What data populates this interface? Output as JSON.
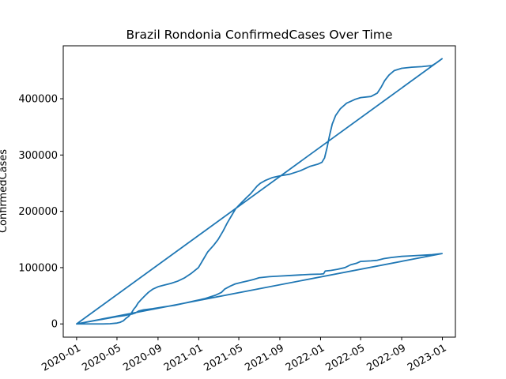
{
  "chart_data": {
    "type": "line",
    "title": "Brazil Rondonia ConfirmedCases Over Time",
    "xlabel": "",
    "ylabel": "ConfirmedCases",
    "grid": false,
    "legend": "none",
    "x_ticks": [
      {
        "date": "2020-01-01",
        "label": "2020-01"
      },
      {
        "date": "2020-05-01",
        "label": "2020-05"
      },
      {
        "date": "2020-09-01",
        "label": "2020-09"
      },
      {
        "date": "2021-01-01",
        "label": "2021-01"
      },
      {
        "date": "2021-05-01",
        "label": "2021-05"
      },
      {
        "date": "2021-09-01",
        "label": "2021-09"
      },
      {
        "date": "2022-01-01",
        "label": "2022-01"
      },
      {
        "date": "2022-05-01",
        "label": "2022-05"
      },
      {
        "date": "2022-09-01",
        "label": "2022-09"
      },
      {
        "date": "2023-01-01",
        "label": "2023-01"
      }
    ],
    "y_ticks": [
      {
        "value": 0,
        "label": "0"
      },
      {
        "value": 100000,
        "label": "100000"
      },
      {
        "value": 200000,
        "label": "200000"
      },
      {
        "value": 300000,
        "label": "300000"
      },
      {
        "value": 400000,
        "label": "400000"
      }
    ],
    "xlim": [
      "2019-11-22",
      "2023-02-09"
    ],
    "ylim": [
      -23500,
      494000
    ],
    "series": [
      {
        "name": "ConfirmedCases",
        "color": "#1f77b4",
        "points": [
          [
            "2020-01-01",
            0
          ],
          [
            "2020-03-20",
            0
          ],
          [
            "2020-04-10",
            300
          ],
          [
            "2020-05-01",
            1500
          ],
          [
            "2020-05-10",
            2800
          ],
          [
            "2020-05-20",
            5500
          ],
          [
            "2020-05-28",
            10000
          ],
          [
            "2020-06-05",
            13500
          ],
          [
            "2020-06-10",
            17000
          ],
          [
            "2020-06-15",
            21000
          ],
          [
            "2020-06-20",
            26000
          ],
          [
            "2020-06-27",
            31000
          ],
          [
            "2020-07-03",
            37000
          ],
          [
            "2020-07-12",
            43000
          ],
          [
            "2020-07-22",
            49000
          ],
          [
            "2020-08-03",
            56000
          ],
          [
            "2020-08-17",
            62000
          ],
          [
            "2020-09-01",
            66000
          ],
          [
            "2020-09-20",
            69000
          ],
          [
            "2020-10-10",
            72000
          ],
          [
            "2020-10-30",
            76000
          ],
          [
            "2020-11-20",
            82000
          ],
          [
            "2020-12-10",
            90000
          ],
          [
            "2020-12-31",
            100000
          ],
          [
            "2021-01-15",
            115000
          ],
          [
            "2021-01-28",
            128000
          ],
          [
            "2021-02-15",
            140000
          ],
          [
            "2021-02-28",
            150000
          ],
          [
            "2021-03-15",
            165000
          ],
          [
            "2021-03-28",
            180000
          ],
          [
            "2021-04-10",
            193000
          ],
          [
            "2021-04-22",
            205000
          ],
          [
            "2021-05-05",
            213000
          ],
          [
            "2021-05-20",
            222000
          ],
          [
            "2021-06-05",
            231000
          ],
          [
            "2021-06-15",
            238000
          ],
          [
            "2021-06-25",
            245000
          ],
          [
            "2021-07-05",
            250000
          ],
          [
            "2021-07-20",
            255000
          ],
          [
            "2021-08-10",
            260000
          ],
          [
            "2021-09-01",
            263000
          ],
          [
            "2021-10-01",
            266000
          ],
          [
            "2021-11-01",
            272000
          ],
          [
            "2021-12-01",
            280000
          ],
          [
            "2021-12-25",
            284000
          ],
          [
            "2022-01-05",
            287000
          ],
          [
            "2022-01-13",
            295000
          ],
          [
            "2022-01-20",
            312000
          ],
          [
            "2022-01-28",
            335000
          ],
          [
            "2022-02-05",
            355000
          ],
          [
            "2022-02-15",
            370000
          ],
          [
            "2022-03-01",
            382000
          ],
          [
            "2022-03-20",
            392000
          ],
          [
            "2022-04-15",
            399000
          ],
          [
            "2022-05-01",
            402000
          ],
          [
            "2022-06-01",
            404000
          ],
          [
            "2022-06-20",
            410000
          ],
          [
            "2022-07-01",
            420000
          ],
          [
            "2022-07-12",
            432000
          ],
          [
            "2022-07-25",
            442000
          ],
          [
            "2022-08-10",
            450000
          ],
          [
            "2022-09-01",
            454000
          ],
          [
            "2022-10-01",
            456000
          ],
          [
            "2022-11-01",
            457000
          ],
          [
            "2022-12-01",
            459000
          ],
          [
            "2022-12-15",
            464000
          ],
          [
            "2022-12-31",
            471000
          ],
          [
            "2020-01-01",
            0
          ],
          [
            "2020-05-01",
            13000
          ],
          [
            "2020-05-25",
            15000
          ],
          [
            "2020-06-15",
            17500
          ],
          [
            "2020-06-25",
            19500
          ],
          [
            "2020-07-05",
            23000
          ],
          [
            "2020-07-20",
            25000
          ],
          [
            "2020-08-15",
            27000
          ],
          [
            "2020-09-15",
            30000
          ],
          [
            "2020-10-20",
            33000
          ],
          [
            "2020-11-20",
            37000
          ],
          [
            "2020-12-20",
            41000
          ],
          [
            "2021-01-20",
            45000
          ],
          [
            "2021-02-20",
            51000
          ],
          [
            "2021-03-10",
            56000
          ],
          [
            "2021-03-20",
            62000
          ],
          [
            "2021-04-05",
            67000
          ],
          [
            "2021-04-20",
            71000
          ],
          [
            "2021-05-10",
            74000
          ],
          [
            "2021-06-01",
            77000
          ],
          [
            "2021-06-15",
            79000
          ],
          [
            "2021-07-01",
            82000
          ],
          [
            "2021-08-01",
            84000
          ],
          [
            "2021-09-01",
            85000
          ],
          [
            "2021-10-01",
            86000
          ],
          [
            "2021-11-01",
            87000
          ],
          [
            "2021-12-01",
            88000
          ],
          [
            "2022-01-01",
            88500
          ],
          [
            "2022-01-10",
            89000
          ],
          [
            "2022-01-15",
            94000
          ],
          [
            "2022-02-01",
            95000
          ],
          [
            "2022-02-20",
            97000
          ],
          [
            "2022-03-15",
            100000
          ],
          [
            "2022-04-01",
            105000
          ],
          [
            "2022-04-20",
            108000
          ],
          [
            "2022-05-01",
            111000
          ],
          [
            "2022-06-01",
            112000
          ],
          [
            "2022-06-20",
            113000
          ],
          [
            "2022-07-10",
            116000
          ],
          [
            "2022-08-01",
            118000
          ],
          [
            "2022-09-01",
            120000
          ],
          [
            "2022-10-01",
            121000
          ],
          [
            "2022-11-01",
            122000
          ],
          [
            "2022-12-01",
            123000
          ],
          [
            "2022-12-31",
            125000
          ],
          [
            "2020-01-01",
            0
          ],
          [
            "2022-12-31",
            125000
          ]
        ]
      }
    ]
  }
}
